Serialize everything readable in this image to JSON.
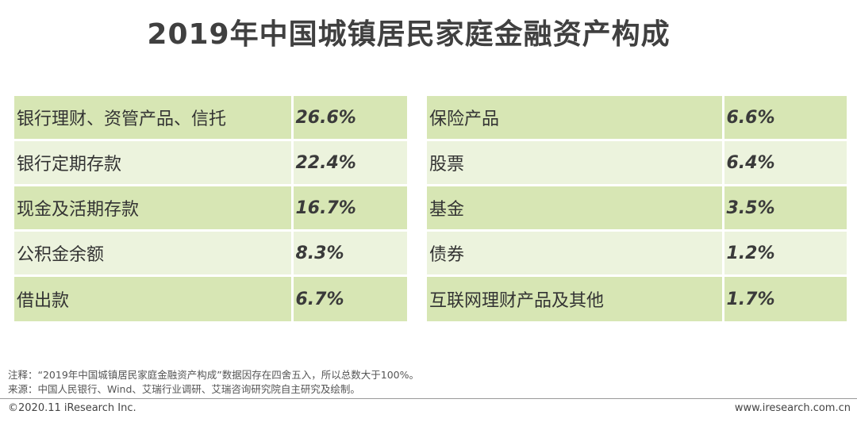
{
  "title": "2019年中国城镇居民家庭金融资产构成",
  "chart_data": {
    "type": "table",
    "title": "2019年中国城镇居民家庭金融资产构成",
    "left_table": [
      {
        "label": "银行理财、资管产品、信托",
        "value": "26.6%"
      },
      {
        "label": "银行定期存款",
        "value": "22.4%"
      },
      {
        "label": "现金及活期存款",
        "value": "16.7%"
      },
      {
        "label": "公积金余额",
        "value": "8.3%"
      },
      {
        "label": "借出款",
        "value": "6.7%"
      }
    ],
    "right_table": [
      {
        "label": "保险产品",
        "value": "6.6%"
      },
      {
        "label": "股票",
        "value": "6.4%"
      },
      {
        "label": "基金",
        "value": "3.5%"
      },
      {
        "label": "债券",
        "value": "1.2%"
      },
      {
        "label": "互联网理财产品及其他",
        "value": "1.7%"
      }
    ],
    "row_colors": [
      "#d7e6b4",
      "#ecf3dd"
    ]
  },
  "notes": {
    "note": "注释：“2019年中国城镇居民家庭金融资产构成”数据因存在四舍五入，所以总数大于100%。",
    "source": "来源：中国人民银行、Wind、艾瑞行业调研、艾瑞咨询研究院自主研究及绘制。"
  },
  "footer": {
    "copyright": "©2020.11 iResearch Inc.",
    "url": "www.iresearch.com.cn"
  }
}
